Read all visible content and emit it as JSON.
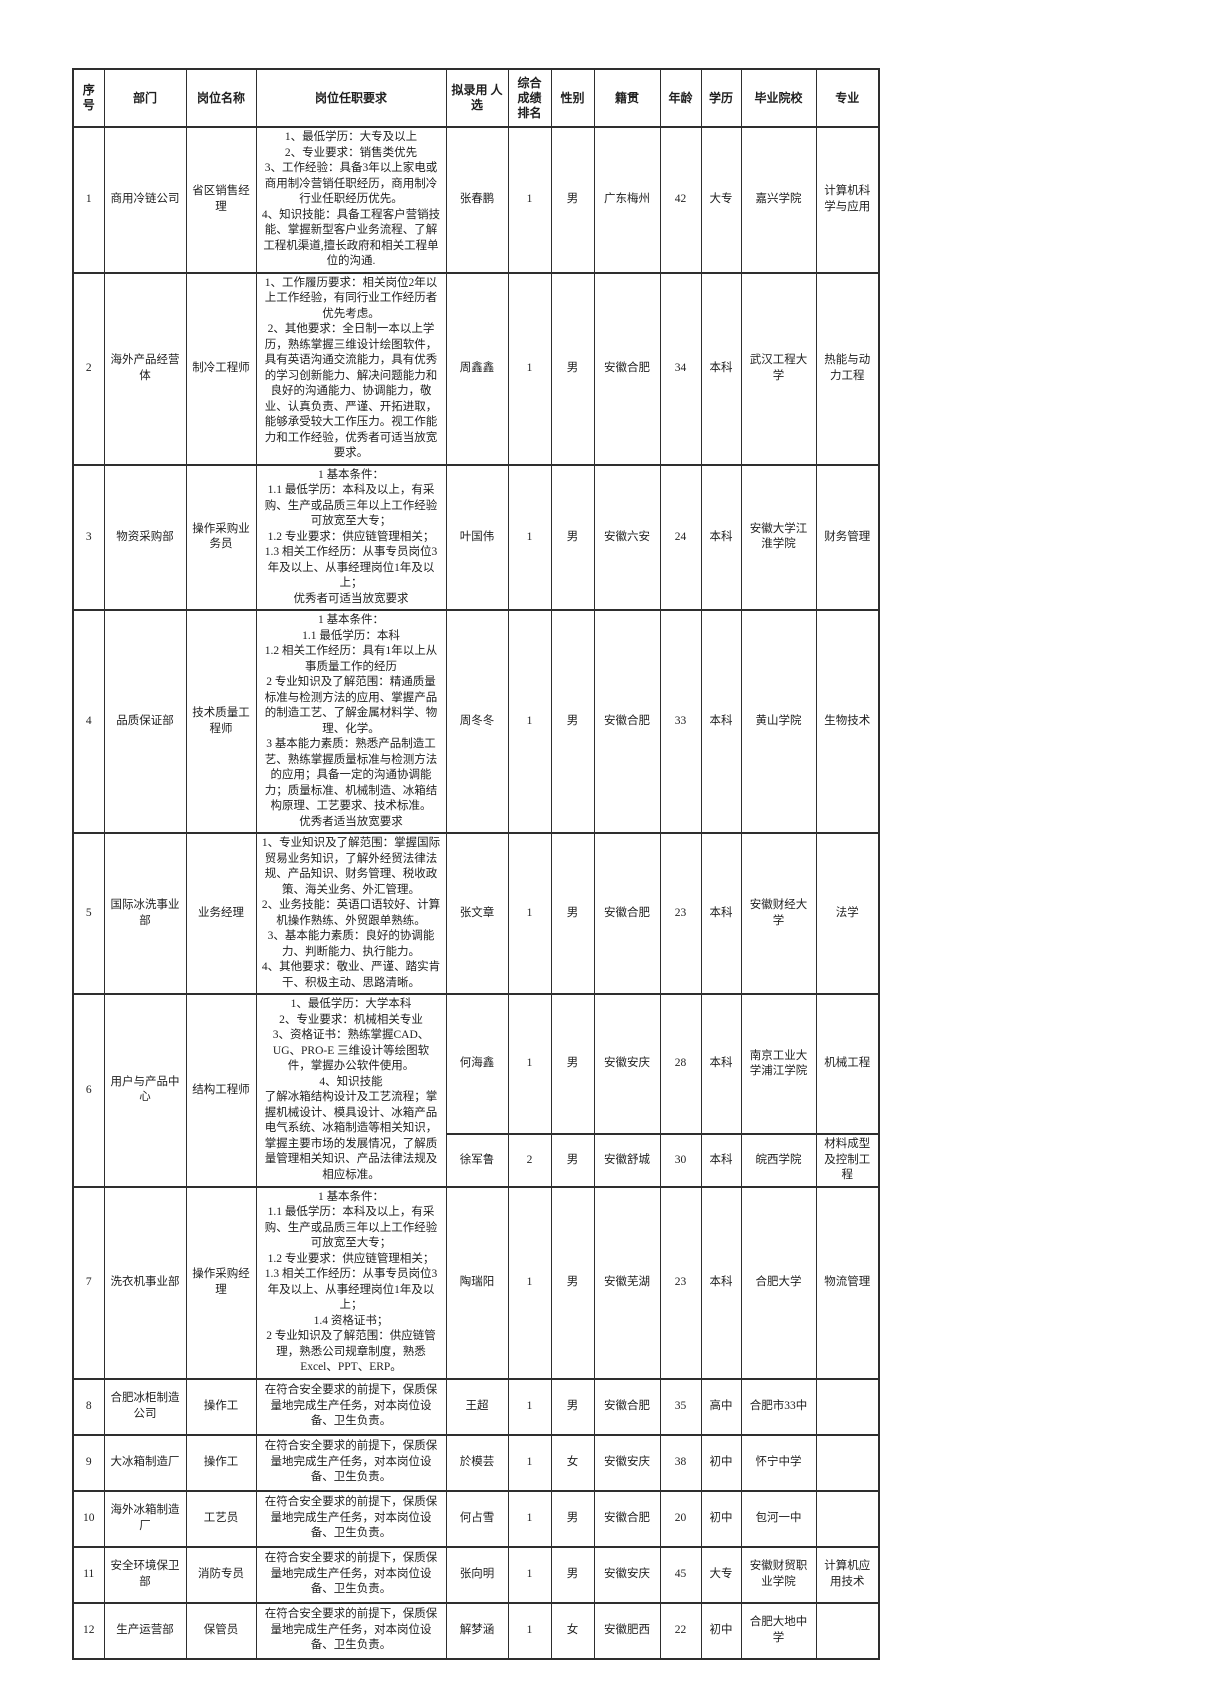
{
  "table": {
    "columns": [
      {
        "key": "seq",
        "label": "序号"
      },
      {
        "key": "department",
        "label": "部门"
      },
      {
        "key": "position",
        "label": "岗位名称"
      },
      {
        "key": "requirements",
        "label": "岗位任职要求"
      },
      {
        "key": "candidate",
        "label": "拟录用 人\n选"
      },
      {
        "key": "rank",
        "label": "综合\n成绩\n排名"
      },
      {
        "key": "gender",
        "label": "性别"
      },
      {
        "key": "origin",
        "label": "籍贯"
      },
      {
        "key": "age",
        "label": "年龄"
      },
      {
        "key": "education",
        "label": "学历"
      },
      {
        "key": "school",
        "label": "毕业院校"
      },
      {
        "key": "major",
        "label": "专业"
      }
    ],
    "rows": [
      {
        "seq": "1",
        "department": "商用冷链公司",
        "position": "省区销售经理",
        "requirements": "1、最低学历：大专及以上\n2、专业要求：销售类优先\n3、工作经验：具备3年以上家电或商用制冷营销任职经历，商用制冷行业任职经历优先。\n4、知识技能：具备工程客户营销技能、掌握新型客户业务流程、了解工程机渠道,擅长政府和相关工程单位的沟通.",
        "candidates": [
          {
            "name": "张春鹏",
            "rank": "1",
            "gender": "男",
            "origin": "广东梅州",
            "age": "42",
            "education": "大专",
            "school": "嘉兴学院",
            "major": "计算机科学与应用"
          }
        ]
      },
      {
        "seq": "2",
        "department": "海外产品经营体",
        "position": "制冷工程师",
        "requirements": "1、工作履历要求：相关岗位2年以上工作经验，有同行业工作经历者优先考虑。\n2、其他要求：全日制一本以上学历，熟练掌握三维设计绘图软件，具有英语沟通交流能力，具有优秀的学习创新能力、解决问题能力和良好的沟通能力、协调能力，敬业、认真负责、严谨、开拓进取，能够承受较大工作压力。视工作能力和工作经验，优秀者可适当放宽要求。",
        "candidates": [
          {
            "name": "周鑫鑫",
            "rank": "1",
            "gender": "男",
            "origin": "安徽合肥",
            "age": "34",
            "education": "本科",
            "school": "武汉工程大学",
            "major": "热能与动力工程"
          }
        ]
      },
      {
        "seq": "3",
        "department": "物资采购部",
        "position": "操作采购业务员",
        "requirements": "1 基本条件：\n1.1 最低学历：本科及以上，有采购、生产或品质三年以上工作经验可放宽至大专；\n1.2 专业要求：供应链管理相关；\n1.3 相关工作经历：从事专员岗位3年及以上、从事经理岗位1年及以上；\n优秀者可适当放宽要求",
        "candidates": [
          {
            "name": "叶国伟",
            "rank": "1",
            "gender": "男",
            "origin": "安徽六安",
            "age": "24",
            "education": "本科",
            "school": "安徽大学江淮学院",
            "major": "财务管理"
          }
        ]
      },
      {
        "seq": "4",
        "department": "品质保证部",
        "position": "技术质量工程师",
        "requirements": "1 基本条件：\n1.1 最低学历：本科\n1.2 相关工作经历：具有1年以上从事质量工作的经历\n2 专业知识及了解范围：精通质量标准与检测方法的应用、掌握产品的制造工艺、了解金属材料学、物理、化学。\n3 基本能力素质：熟悉产品制造工艺、熟练掌握质量标准与检测方法的应用；具备一定的沟通协调能力；质量标准、机械制造、冰箱结构原理、工艺要求、技术标准。\n优秀者适当放宽要求",
        "candidates": [
          {
            "name": "周冬冬",
            "rank": "1",
            "gender": "男",
            "origin": "安徽合肥",
            "age": "33",
            "education": "本科",
            "school": "黄山学院",
            "major": "生物技术"
          }
        ]
      },
      {
        "seq": "5",
        "department": "国际冰洗事业部",
        "position": "业务经理",
        "requirements": "1、专业知识及了解范围：掌握国际贸易业务知识，了解外经贸法律法规、产品知识、财务管理、税收政策、海关业务、外汇管理。\n2、业务技能：英语口语较好、计算机操作熟练、外贸跟单熟练。\n3、基本能力素质：良好的协调能力、判断能力、执行能力。\n4、其他要求：敬业、严谨、踏实肯干、积极主动、思路清晰。",
        "candidates": [
          {
            "name": "张文章",
            "rank": "1",
            "gender": "男",
            "origin": "安徽合肥",
            "age": "23",
            "education": "本科",
            "school": "安徽财经大学",
            "major": "法学"
          }
        ]
      },
      {
        "seq": "6",
        "department": "用户与产品中心",
        "position": "结构工程师",
        "requirements": "1、最低学历：大学本科\n2、专业要求：机械相关专业\n3、资格证书：熟练掌握CAD、UG、PRO-E 三维设计等绘图软件，掌握办公软件使用。\n4、知识技能\n了解冰箱结构设计及工艺流程；掌握机械设计、模具设计、冰箱产品电气系统、冰箱制造等相关知识，掌握主要市场的发展情况，了解质量管理相关知识、产品法律法规及相应标准。",
        "candidates": [
          {
            "name": "何海鑫",
            "rank": "1",
            "gender": "男",
            "origin": "安徽安庆",
            "age": "28",
            "education": "本科",
            "school": "南京工业大学浦江学院",
            "major": "机械工程"
          },
          {
            "name": "徐军鲁",
            "rank": "2",
            "gender": "男",
            "origin": "安徽舒城",
            "age": "30",
            "education": "本科",
            "school": "皖西学院",
            "major": "材料成型及控制工程"
          }
        ]
      },
      {
        "seq": "7",
        "department": "洗衣机事业部",
        "position": "操作采购经理",
        "requirements": "1 基本条件：\n1.1 最低学历：本科及以上，有采购、生产或品质三年以上工作经验可放宽至大专；\n1.2 专业要求：供应链管理相关；\n1.3 相关工作经历：从事专员岗位3年及以上、从事经理岗位1年及以上；\n1.4 资格证书；\n2 专业知识及了解范围：供应链管理，熟悉公司规章制度，熟悉Excel、PPT、ERP。",
        "candidates": [
          {
            "name": "陶瑞阳",
            "rank": "1",
            "gender": "男",
            "origin": "安徽芜湖",
            "age": "23",
            "education": "本科",
            "school": "合肥大学",
            "major": "物流管理"
          }
        ]
      },
      {
        "seq": "8",
        "department": "合肥冰柜制造公司",
        "position": "操作工",
        "requirements": "在符合安全要求的前提下，保质保量地完成生产任务，对本岗位设备、卫生负责。",
        "candidates": [
          {
            "name": "王超",
            "rank": "1",
            "gender": "男",
            "origin": "安徽合肥",
            "age": "35",
            "education": "高中",
            "school": "合肥市33中",
            "major": ""
          }
        ]
      },
      {
        "seq": "9",
        "department": "大冰箱制造厂",
        "position": "操作工",
        "requirements": "在符合安全要求的前提下，保质保量地完成生产任务，对本岗位设备、卫生负责。",
        "candidates": [
          {
            "name": "於模芸",
            "rank": "1",
            "gender": "女",
            "origin": "安徽安庆",
            "age": "38",
            "education": "初中",
            "school": "怀宁中学",
            "major": ""
          }
        ]
      },
      {
        "seq": "10",
        "department": "海外冰箱制造厂",
        "position": "工艺员",
        "requirements": "在符合安全要求的前提下，保质保量地完成生产任务，对本岗位设备、卫生负责。",
        "candidates": [
          {
            "name": "何占雪",
            "rank": "1",
            "gender": "男",
            "origin": "安徽合肥",
            "age": "20",
            "education": "初中",
            "school": "包河一中",
            "major": ""
          }
        ]
      },
      {
        "seq": "11",
        "department": "安全环境保卫部",
        "position": "消防专员",
        "requirements": "在符合安全要求的前提下，保质保量地完成生产任务，对本岗位设备、卫生负责。",
        "candidates": [
          {
            "name": "张向明",
            "rank": "1",
            "gender": "男",
            "origin": "安徽安庆",
            "age": "45",
            "education": "大专",
            "school": "安徽财贸职业学院",
            "major": "计算机应用技术"
          }
        ]
      },
      {
        "seq": "12",
        "department": "生产运营部",
        "position": "保管员",
        "requirements": "在符合安全要求的前提下，保质保量地完成生产任务，对本岗位设备、卫生负责。",
        "candidates": [
          {
            "name": "解梦涵",
            "rank": "1",
            "gender": "女",
            "origin": "安徽肥西",
            "age": "22",
            "education": "初中",
            "school": "合肥大地中学",
            "major": ""
          }
        ]
      }
    ]
  }
}
